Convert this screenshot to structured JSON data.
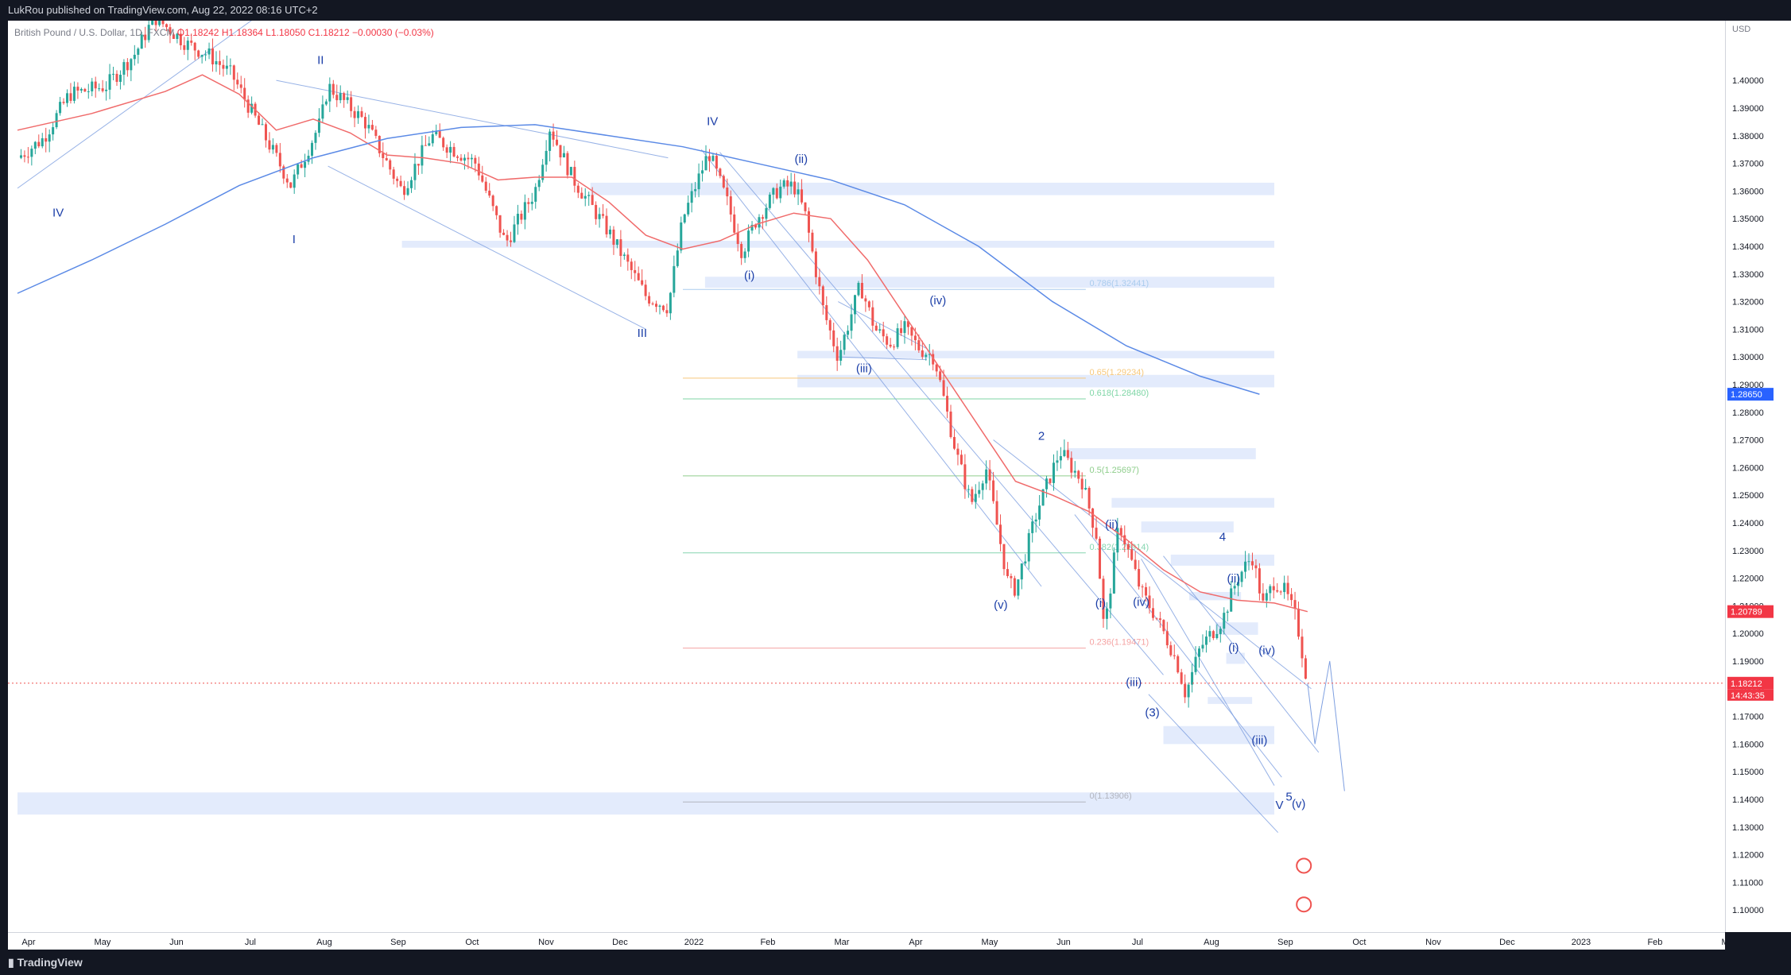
{
  "header": {
    "publisher": "LukRou published on TradingView.com, Aug 22, 2022 08:16 UTC+2"
  },
  "legend": {
    "symbol": "British Pound / U.S. Dollar, 1D, FXCM",
    "open": "O1.18242",
    "high": "H1.18364",
    "low": "L1.18050",
    "close": "C1.18212",
    "change": "−0.00030 (−0.03%)"
  },
  "footer": {
    "brand": "TradingView"
  },
  "colors": {
    "up": "#26a69a",
    "down": "#ef5350",
    "ma_fast": "#f06b6b",
    "ma_slow": "#5b8ae6",
    "channel": "#7e9fe0",
    "zone": "#dce6fb",
    "label": "#1c3fa8"
  },
  "chart_data": {
    "type": "candlestick",
    "currency": "USD",
    "ylim": [
      1.092,
      1.4216
    ],
    "grid": false,
    "x_tick_labels": [
      "Apr",
      "May",
      "Jun",
      "Jul",
      "Aug",
      "Sep",
      "Oct",
      "Nov",
      "Dec",
      "2022",
      "Feb",
      "Mar",
      "Apr",
      "May",
      "Jun",
      "Jul",
      "Aug",
      "Sep",
      "Oct",
      "Nov",
      "Dec",
      "2023",
      "Feb",
      "Mar"
    ],
    "y_ticks": [
      1.4,
      1.39,
      1.38,
      1.37,
      1.36,
      1.35,
      1.34,
      1.33,
      1.32,
      1.31,
      1.3,
      1.29,
      1.28,
      1.27,
      1.26,
      1.25,
      1.24,
      1.23,
      1.22,
      1.21,
      1.2,
      1.19,
      1.18,
      1.17,
      1.16,
      1.15,
      1.14,
      1.13,
      1.12,
      1.11,
      1.1
    ],
    "y_tick_labels": [
      "1.40000",
      "1.39000",
      "1.38000",
      "1.37000",
      "1.36000",
      "1.35000",
      "1.34000",
      "1.33000",
      "1.32000",
      "1.31000",
      "1.30000",
      "1.29000",
      "1.28000",
      "1.27000",
      "1.26000",
      "1.25000",
      "1.24000",
      "1.23000",
      "1.22000",
      "1.21000",
      "1.20000",
      "1.19000",
      "1.18000",
      "1.17000",
      "1.16000",
      "1.15000",
      "1.14000",
      "1.13000",
      "1.12000",
      "1.11000",
      "1.10000"
    ],
    "price_path": [
      [
        0,
        1.372
      ],
      [
        0.35,
        1.379
      ],
      [
        0.7,
        1.395
      ],
      [
        1.2,
        1.398
      ],
      [
        1.6,
        1.41
      ],
      [
        1.85,
        1.423
      ],
      [
        2.3,
        1.413
      ],
      [
        2.6,
        1.409
      ],
      [
        2.9,
        1.402
      ],
      [
        3.2,
        1.387
      ],
      [
        3.7,
        1.362
      ],
      [
        4.1,
        1.385
      ],
      [
        4.2,
        1.398
      ],
      [
        4.7,
        1.385
      ],
      [
        5.2,
        1.36
      ],
      [
        5.6,
        1.38
      ],
      [
        6.2,
        1.37
      ],
      [
        6.6,
        1.341
      ],
      [
        7.0,
        1.36
      ],
      [
        7.2,
        1.383
      ],
      [
        7.5,
        1.365
      ],
      [
        8.0,
        1.345
      ],
      [
        8.5,
        1.322
      ],
      [
        8.8,
        1.318
      ],
      [
        9.0,
        1.35
      ],
      [
        9.35,
        1.374
      ],
      [
        9.6,
        1.356
      ],
      [
        9.8,
        1.338
      ],
      [
        10.0,
        1.35
      ],
      [
        10.3,
        1.361
      ],
      [
        10.5,
        1.362
      ],
      [
        10.65,
        1.352
      ],
      [
        10.9,
        1.317
      ],
      [
        11.1,
        1.3
      ],
      [
        11.4,
        1.326
      ],
      [
        11.6,
        1.31
      ],
      [
        11.8,
        1.305
      ],
      [
        12.0,
        1.31
      ],
      [
        12.2,
        1.303
      ],
      [
        12.4,
        1.3
      ],
      [
        12.7,
        1.265
      ],
      [
        12.9,
        1.247
      ],
      [
        13.1,
        1.26
      ],
      [
        13.4,
        1.218
      ],
      [
        13.5,
        1.216
      ],
      [
        13.8,
        1.245
      ],
      [
        14.1,
        1.266
      ],
      [
        14.4,
        1.255
      ],
      [
        14.6,
        1.235
      ],
      [
        14.7,
        1.2
      ],
      [
        14.9,
        1.24
      ],
      [
        15.2,
        1.215
      ],
      [
        15.4,
        1.206
      ],
      [
        15.6,
        1.195
      ],
      [
        15.7,
        1.188
      ],
      [
        15.8,
        1.178
      ],
      [
        16.0,
        1.195
      ],
      [
        16.3,
        1.205
      ],
      [
        16.5,
        1.22
      ],
      [
        16.7,
        1.228
      ],
      [
        16.85,
        1.21
      ],
      [
        17.0,
        1.219
      ],
      [
        17.15,
        1.215
      ],
      [
        17.3,
        1.205
      ],
      [
        17.45,
        1.182
      ]
    ],
    "moving_averages": [
      {
        "color": "#f06b6b",
        "points": [
          [
            0,
            1.382
          ],
          [
            1,
            1.388
          ],
          [
            2,
            1.396
          ],
          [
            2.5,
            1.402
          ],
          [
            3,
            1.395
          ],
          [
            3.5,
            1.382
          ],
          [
            4,
            1.386
          ],
          [
            4.5,
            1.381
          ],
          [
            5,
            1.373
          ],
          [
            5.5,
            1.372
          ],
          [
            6,
            1.37
          ],
          [
            6.5,
            1.364
          ],
          [
            7,
            1.365
          ],
          [
            7.5,
            1.365
          ],
          [
            8,
            1.356
          ],
          [
            8.5,
            1.344
          ],
          [
            9,
            1.339
          ],
          [
            9.5,
            1.342
          ],
          [
            10,
            1.348
          ],
          [
            10.5,
            1.352
          ],
          [
            11,
            1.35
          ],
          [
            11.5,
            1.335
          ],
          [
            12,
            1.315
          ],
          [
            12.5,
            1.295
          ],
          [
            13,
            1.275
          ],
          [
            13.5,
            1.255
          ],
          [
            14,
            1.25
          ],
          [
            14.5,
            1.244
          ],
          [
            15,
            1.234
          ],
          [
            15.5,
            1.223
          ],
          [
            16,
            1.215
          ],
          [
            16.5,
            1.212
          ],
          [
            17,
            1.211
          ],
          [
            17.45,
            1.2079
          ]
        ]
      },
      {
        "color": "#5b8ae6",
        "points": [
          [
            0,
            1.323
          ],
          [
            1,
            1.335
          ],
          [
            2,
            1.348
          ],
          [
            3,
            1.362
          ],
          [
            4,
            1.372
          ],
          [
            5,
            1.379
          ],
          [
            6,
            1.383
          ],
          [
            7,
            1.384
          ],
          [
            8,
            1.38
          ],
          [
            9,
            1.376
          ],
          [
            10,
            1.37
          ],
          [
            11,
            1.364
          ],
          [
            12,
            1.355
          ],
          [
            13,
            1.34
          ],
          [
            14,
            1.32
          ],
          [
            15,
            1.304
          ],
          [
            16,
            1.293
          ],
          [
            16.8,
            1.2865
          ]
        ]
      }
    ],
    "horizontal_lines": [
      {
        "label": "0.786(1.32441)",
        "value": 1.32441,
        "color": "#aaccee"
      },
      {
        "label": "0.65(1.29234)",
        "value": 1.29234,
        "color": "#f7c87b"
      },
      {
        "label": "0.618(1.28480)",
        "value": 1.2848,
        "color": "#7fd6a6"
      },
      {
        "label": "0.5(1.25697)",
        "value": 1.25697,
        "color": "#8fce8c"
      },
      {
        "label": "0.382(1.22914)",
        "value": 1.22914,
        "color": "#86d6b0"
      },
      {
        "label": "0.236(1.19471)",
        "value": 1.19471,
        "color": "#f5a3a3"
      },
      {
        "label": "0(1.13906)",
        "value": 1.13906,
        "color": "#b2b5be"
      }
    ],
    "zones": [
      [
        7.75,
        17.0,
        1.363,
        1.3585
      ],
      [
        5.2,
        17.0,
        1.342,
        1.3395
      ],
      [
        9.3,
        17.0,
        1.329,
        1.325
      ],
      [
        10.55,
        17.0,
        1.3022,
        1.2995
      ],
      [
        10.55,
        17.0,
        1.2935,
        1.289
      ],
      [
        14.2,
        16.75,
        1.267,
        1.263
      ],
      [
        14.8,
        17.0,
        1.249,
        1.2455
      ],
      [
        15.2,
        16.45,
        1.2405,
        1.2365
      ],
      [
        15.6,
        17.0,
        1.2285,
        1.2245
      ],
      [
        15.85,
        16.55,
        1.215,
        1.212
      ],
      [
        16.2,
        16.78,
        1.204,
        1.1995
      ],
      [
        16.35,
        16.6,
        1.193,
        1.189
      ],
      [
        16.1,
        16.7,
        1.177,
        1.1745
      ],
      [
        15.5,
        17.0,
        1.1665,
        1.16
      ],
      [
        0,
        17.0,
        1.1425,
        1.1345
      ]
    ],
    "wave_labels": [
      {
        "text": "IV",
        "x": 0.55,
        "y": 1.3508
      },
      {
        "text": "I",
        "x": 3.74,
        "y": 1.3412
      },
      {
        "text": "II",
        "x": 4.1,
        "y": 1.406
      },
      {
        "text": "III",
        "x": 8.45,
        "y": 1.3072
      },
      {
        "text": "IV",
        "x": 9.4,
        "y": 1.3838
      },
      {
        "text": "(i)",
        "x": 9.9,
        "y": 1.328
      },
      {
        "text": "(ii)",
        "x": 10.6,
        "y": 1.3702
      },
      {
        "text": "(iii)",
        "x": 11.45,
        "y": 1.2945
      },
      {
        "text": "(iv)",
        "x": 12.45,
        "y": 1.319
      },
      {
        "text": "(v)",
        "x": 13.3,
        "y": 1.209
      },
      {
        "text": "2",
        "x": 13.85,
        "y": 1.27
      },
      {
        "text": "(i)",
        "x": 14.65,
        "y": 1.2095
      },
      {
        "text": "(ii)",
        "x": 14.8,
        "y": 1.238
      },
      {
        "text": "(iii)",
        "x": 15.1,
        "y": 1.181
      },
      {
        "text": "(iv)",
        "x": 15.2,
        "y": 1.21
      },
      {
        "text": "(3)",
        "x": 15.35,
        "y": 1.17
      },
      {
        "text": "4",
        "x": 16.3,
        "y": 1.2335
      },
      {
        "text": "(ii)",
        "x": 16.45,
        "y": 1.2185
      },
      {
        "text": "(i)",
        "x": 16.45,
        "y": 1.1935
      },
      {
        "text": "(iv)",
        "x": 16.9,
        "y": 1.1925
      },
      {
        "text": "(iii)",
        "x": 16.8,
        "y": 1.16
      },
      {
        "text": "5",
        "x": 17.2,
        "y": 1.1395
      },
      {
        "text": "V",
        "x": 17.07,
        "y": 1.1365
      },
      {
        "text": "(v)",
        "x": 17.33,
        "y": 1.137
      }
    ]
  },
  "price_labels": {
    "ma_slow": "1.28650",
    "ma_fast": "1.20789",
    "last": "1.18212",
    "countdown": "14:43:35"
  }
}
